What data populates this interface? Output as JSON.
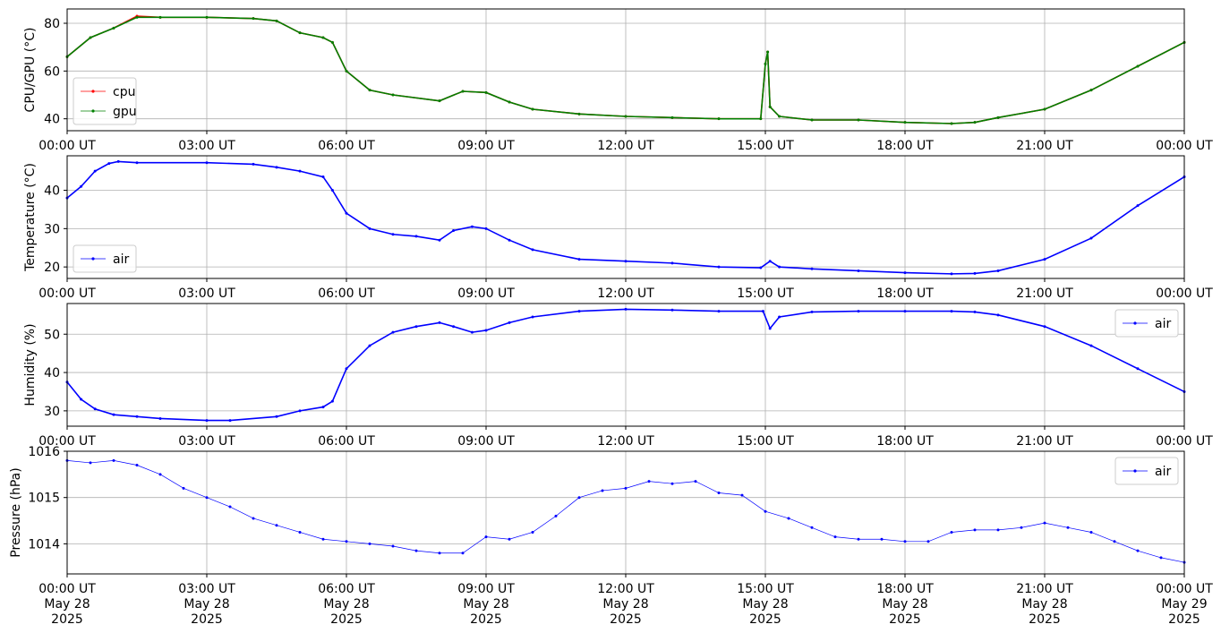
{
  "chart_data": [
    {
      "type": "line",
      "ylabel": "CPU/GPU (°C)",
      "ylim": [
        35,
        86
      ],
      "yticks": [
        40,
        60,
        80
      ],
      "xlim": [
        0,
        24
      ],
      "xticks": [
        0,
        3,
        6,
        9,
        12,
        15,
        18,
        21,
        24
      ],
      "xtick_labels": [
        "00:00 UT",
        "03:00 UT",
        "06:00 UT",
        "09:00 UT",
        "12:00 UT",
        "15:00 UT",
        "18:00 UT",
        "21:00 UT",
        "00:00 UT"
      ],
      "grid": true,
      "legend": "lower-left",
      "series": [
        {
          "name": "cpu",
          "color": "#ff0000",
          "x": [
            0,
            0.5,
            1,
            1.5,
            2,
            3,
            4,
            4.5,
            5,
            5.5,
            5.7,
            6,
            6.5,
            7,
            8,
            8.5,
            9,
            9.5,
            10,
            11,
            12,
            13,
            14,
            14.9,
            15.0,
            15.05,
            15.1,
            15.3,
            16,
            17,
            18,
            19,
            19.5,
            20,
            21,
            22,
            23,
            24
          ],
          "y": [
            66,
            74,
            78,
            83,
            82.5,
            82.5,
            82,
            81,
            76,
            74,
            72,
            60,
            52,
            50,
            47.5,
            51.5,
            51,
            47,
            44,
            42,
            41,
            40.5,
            40,
            40,
            63,
            68,
            45,
            41,
            39.5,
            39.5,
            38.5,
            38,
            38.5,
            40.5,
            44,
            52,
            62,
            72
          ]
        },
        {
          "name": "gpu",
          "color": "#008000",
          "x": [
            0,
            0.5,
            1,
            1.5,
            2,
            3,
            4,
            4.5,
            5,
            5.5,
            5.7,
            6,
            6.5,
            7,
            8,
            8.5,
            9,
            9.5,
            10,
            11,
            12,
            13,
            14,
            14.9,
            15.0,
            15.05,
            15.1,
            15.3,
            16,
            17,
            18,
            19,
            19.5,
            20,
            21,
            22,
            23,
            24
          ],
          "y": [
            66,
            74,
            78,
            82.5,
            82.5,
            82.5,
            82,
            81,
            76,
            74,
            72,
            60,
            52,
            50,
            47.5,
            51.5,
            51,
            47,
            44,
            42,
            41,
            40.5,
            40,
            40,
            63,
            68,
            45,
            41,
            39.5,
            39.5,
            38.5,
            38,
            38.5,
            40.5,
            44,
            52,
            62,
            72
          ]
        }
      ]
    },
    {
      "type": "line",
      "ylabel": "Temperature (°C)",
      "ylim": [
        17,
        49
      ],
      "yticks": [
        20,
        30,
        40
      ],
      "xlim": [
        0,
        24
      ],
      "xticks": [
        0,
        3,
        6,
        9,
        12,
        15,
        18,
        21,
        24
      ],
      "xtick_labels": [
        "00:00 UT",
        "03:00 UT",
        "06:00 UT",
        "09:00 UT",
        "12:00 UT",
        "15:00 UT",
        "18:00 UT",
        "21:00 UT",
        "00:00 UT"
      ],
      "grid": true,
      "legend": "lower-left",
      "series": [
        {
          "name": "air",
          "color": "#0000ff",
          "x": [
            0,
            0.3,
            0.6,
            0.9,
            1.1,
            1.5,
            3,
            4,
            4.5,
            5,
            5.5,
            5.7,
            6,
            6.5,
            7,
            7.5,
            8,
            8.3,
            8.7,
            9,
            9.5,
            10,
            11,
            12,
            13,
            14,
            14.9,
            15.1,
            15.3,
            16,
            17,
            18,
            19,
            19.5,
            20,
            21,
            22,
            23,
            24
          ],
          "y": [
            38,
            41,
            45,
            47,
            47.5,
            47.2,
            47.2,
            46.8,
            46,
            45,
            43.5,
            40,
            34,
            30,
            28.5,
            28,
            27,
            29.5,
            30.5,
            30,
            27,
            24.5,
            22,
            21.5,
            21,
            20,
            19.8,
            21.5,
            20,
            19.5,
            19,
            18.5,
            18.2,
            18.3,
            19,
            22,
            27.5,
            36,
            43.5
          ]
        }
      ]
    },
    {
      "type": "line",
      "ylabel": "Humidity (%)",
      "ylim": [
        26,
        58
      ],
      "yticks": [
        30,
        40,
        50
      ],
      "xlim": [
        0,
        24
      ],
      "xticks": [
        0,
        3,
        6,
        9,
        12,
        15,
        18,
        21,
        24
      ],
      "xtick_labels": [
        "00:00 UT",
        "03:00 UT",
        "06:00 UT",
        "09:00 UT",
        "12:00 UT",
        "15:00 UT",
        "18:00 UT",
        "21:00 UT",
        "00:00 UT"
      ],
      "grid": true,
      "legend": "upper-right",
      "series": [
        {
          "name": "air",
          "color": "#0000ff",
          "x": [
            0,
            0.3,
            0.6,
            1,
            1.5,
            2,
            3,
            3.5,
            4.5,
            5,
            5.5,
            5.7,
            6,
            6.5,
            7,
            7.5,
            8,
            8.3,
            8.7,
            9,
            9.5,
            10,
            11,
            12,
            13,
            14,
            14.95,
            15.1,
            15.3,
            16,
            17,
            18,
            19,
            19.5,
            20,
            21,
            22,
            23,
            24
          ],
          "y": [
            37.5,
            33,
            30.5,
            29,
            28.5,
            28,
            27.5,
            27.5,
            28.5,
            30,
            31,
            32.5,
            41,
            47,
            50.5,
            52,
            53,
            52,
            50.5,
            51,
            53,
            54.5,
            56,
            56.5,
            56.3,
            56,
            56,
            51.5,
            54.5,
            55.8,
            56,
            56,
            56,
            55.8,
            55,
            52,
            47,
            41,
            35
          ]
        }
      ]
    },
    {
      "type": "scatter",
      "ylabel": "Pressure (hPa)",
      "ylim": [
        1013.35,
        1016.0
      ],
      "yticks": [
        1014,
        1015,
        1016
      ],
      "xlim": [
        0,
        24
      ],
      "xticks": [
        0,
        3,
        6,
        9,
        12,
        15,
        18,
        21,
        24
      ],
      "xtick_labels": [
        "00:00 UT\nMay 28\n2025",
        "03:00 UT\nMay 28\n2025",
        "06:00 UT\nMay 28\n2025",
        "09:00 UT\nMay 28\n2025",
        "12:00 UT\nMay 28\n2025",
        "15:00 UT\nMay 28\n2025",
        "18:00 UT\nMay 28\n2025",
        "21:00 UT\nMay 28\n2025",
        "00:00 UT\nMay 29\n2025"
      ],
      "grid": true,
      "legend": "upper-right",
      "series": [
        {
          "name": "air",
          "color": "#0000ff",
          "x": [
            0,
            0.5,
            1,
            1.5,
            2,
            2.5,
            3,
            3.5,
            4,
            4.5,
            5,
            5.5,
            6,
            6.5,
            7,
            7.5,
            8,
            8.5,
            9,
            9.5,
            10,
            10.5,
            11,
            11.5,
            12,
            12.5,
            13,
            13.5,
            14,
            14.5,
            15,
            15.5,
            16,
            16.5,
            17,
            17.5,
            18,
            18.5,
            19,
            19.5,
            20,
            20.5,
            21,
            21.5,
            22,
            22.5,
            23,
            23.5,
            24
          ],
          "y": [
            1015.8,
            1015.75,
            1015.8,
            1015.7,
            1015.5,
            1015.2,
            1015.0,
            1014.8,
            1014.55,
            1014.4,
            1014.25,
            1014.1,
            1014.05,
            1014.0,
            1013.95,
            1013.85,
            1013.8,
            1013.8,
            1014.15,
            1014.1,
            1014.25,
            1014.6,
            1015.0,
            1015.15,
            1015.2,
            1015.35,
            1015.3,
            1015.35,
            1015.1,
            1015.05,
            1014.7,
            1014.55,
            1014.35,
            1014.15,
            1014.1,
            1014.1,
            1014.05,
            1014.05,
            1014.25,
            1014.3,
            1014.3,
            1014.35,
            1014.45,
            1014.35,
            1014.25,
            1014.05,
            1013.85,
            1013.7,
            1013.6
          ]
        }
      ]
    }
  ]
}
